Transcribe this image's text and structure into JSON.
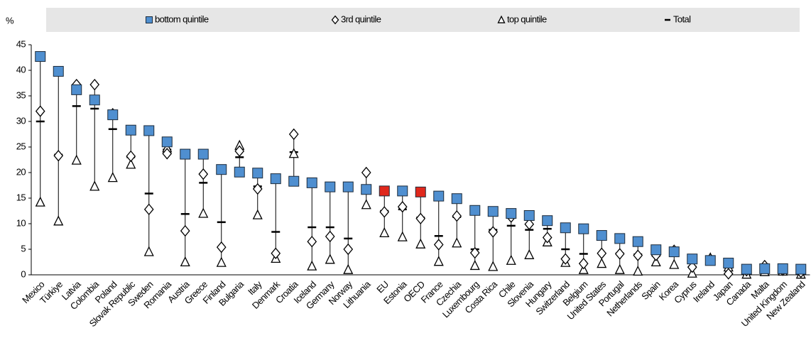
{
  "chart_data": {
    "type": "dot-range",
    "y_label": "%",
    "ylim": [
      0,
      45
    ],
    "yticks": [
      0,
      5,
      10,
      15,
      20,
      25,
      30,
      35,
      40,
      45
    ],
    "grid": false,
    "legend": "top",
    "categories": [
      "Mexico",
      "Türkiye",
      "Latvia",
      "Colombia",
      "Poland",
      "Slovak Republic",
      "Sweden",
      "Romania",
      "Austria",
      "Greece",
      "Finland",
      "Bulgaria",
      "Italy",
      "Denmark",
      "Croatia",
      "Iceland",
      "Germany",
      "Norway",
      "Lithuania",
      "EU",
      "Estonia",
      "OECD",
      "France",
      "Czechia",
      "Luxembourg",
      "Costa Rica",
      "Chile",
      "Slovenia",
      "Hungary",
      "Switzerland",
      "Belgium",
      "United States",
      "Portugal",
      "Netherlands",
      "Spain",
      "Korea",
      "Cyprus",
      "Ireland",
      "Japan",
      "Canada",
      "Malta",
      "United Kingdom",
      "New Zealand"
    ],
    "series": [
      {
        "name": "bottom quintile",
        "marker": "square",
        "color": "#4f8fd0",
        "point_colors": [
          "#4f8fd0",
          "#4f8fd0",
          "#4f8fd0",
          "#4f8fd0",
          "#4f8fd0",
          "#4f8fd0",
          "#4f8fd0",
          "#4f8fd0",
          "#4f8fd0",
          "#4f8fd0",
          "#4f8fd0",
          "#4f8fd0",
          "#4f8fd0",
          "#4f8fd0",
          "#4f8fd0",
          "#4f8fd0",
          "#4f8fd0",
          "#4f8fd0",
          "#4f8fd0",
          "#e0281c",
          "#4f8fd0",
          "#e0281c",
          "#4f8fd0",
          "#4f8fd0",
          "#4f8fd0",
          "#4f8fd0",
          "#4f8fd0",
          "#4f8fd0",
          "#4f8fd0",
          "#4f8fd0",
          "#4f8fd0",
          "#4f8fd0",
          "#4f8fd0",
          "#4f8fd0",
          "#4f8fd0",
          "#4f8fd0",
          "#4f8fd0",
          "#4f8fd0",
          "#4f8fd0",
          "#4f8fd0",
          "#4f8fd0",
          "#4f8fd0",
          "#4f8fd0"
        ],
        "values": [
          42.7,
          39.8,
          36.2,
          34.2,
          31.3,
          28.3,
          28.2,
          26,
          23.6,
          23.6,
          20.6,
          20.1,
          19.9,
          18.8,
          18.3,
          18,
          17.2,
          17.2,
          16.7,
          16.4,
          16.4,
          16.2,
          15.4,
          14.9,
          12.6,
          12.4,
          12,
          11.6,
          10.6,
          9.2,
          9,
          7.7,
          7.1,
          6.5,
          4.9,
          4.5,
          3.1,
          2.8,
          2.3,
          1.1,
          1.2,
          1.2,
          1.1
        ]
      },
      {
        "name": "3rd quintile",
        "marker": "diamond",
        "color": "#ffffff",
        "values": [
          32,
          23.3,
          37.2,
          37.2,
          31.5,
          23.2,
          12.8,
          23.7,
          8.6,
          19.7,
          5.4,
          24.2,
          16.8,
          4.2,
          27.5,
          6.5,
          7.5,
          5,
          20,
          12.3,
          13.3,
          11,
          5.9,
          11.5,
          4.3,
          8.4,
          11.3,
          9.9,
          7.3,
          3.1,
          2.2,
          4.2,
          4.1,
          3.8,
          3.8,
          4.8,
          1.5,
          3.1,
          0.2,
          0.8,
          1.8,
          0.9,
          0.5
        ]
      },
      {
        "name": "top quintile",
        "marker": "triangle",
        "color": "#ffffff",
        "values": [
          14.2,
          10.5,
          22.4,
          17.3,
          19,
          21.6,
          4.5,
          24.8,
          2.5,
          12,
          2.4,
          25.3,
          11.7,
          3.2,
          23.7,
          1.7,
          3,
          1,
          13.7,
          8.2,
          7.4,
          6,
          2.6,
          6.2,
          1.8,
          1.6,
          2.8,
          3.9,
          6.4,
          2.4,
          1,
          2.2,
          1,
          0.7,
          2.5,
          2,
          0.3,
          3.3,
          1.5,
          0.1,
          0.6,
          0.7,
          0.1
        ]
      },
      {
        "name": "Total",
        "marker": "dash",
        "color": "#000000",
        "values": [
          30,
          23.5,
          33,
          32.5,
          28.5,
          23,
          15.9,
          24.5,
          11.9,
          18,
          10.3,
          23,
          17.3,
          8.4,
          24,
          9.3,
          9.3,
          7.1,
          17.2,
          12.5,
          12.8,
          11.2,
          7.6,
          11.3,
          5,
          8.8,
          9.6,
          8.8,
          9,
          5,
          4.1,
          4.2,
          4.2,
          4,
          3.7,
          4.1,
          1.6,
          3,
          1.4,
          0.6,
          1.2,
          1,
          0.5
        ]
      }
    ]
  }
}
